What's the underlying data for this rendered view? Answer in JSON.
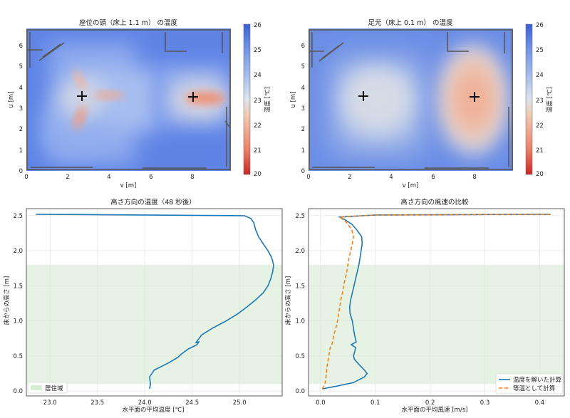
{
  "chart_data": [
    {
      "type": "heatmap",
      "title": "座位の頭（床上 1.1 m） の温度",
      "xlabel": "v [m]",
      "ylabel": "u [m]",
      "xlim": [
        0,
        9.8
      ],
      "ylim": [
        0,
        6.8
      ],
      "xticks": [
        "0",
        "2",
        "4",
        "6",
        "8"
      ],
      "yticks": [
        "0",
        "1",
        "2",
        "3",
        "4",
        "5",
        "6"
      ],
      "colorbar": {
        "label": "温度 [℃]",
        "range": [
          20,
          26
        ],
        "ticks": [
          "20",
          "21",
          "22",
          "23",
          "24",
          "25",
          "26"
        ]
      },
      "markers": [
        {
          "v": 2.7,
          "u": 3.55
        },
        {
          "v": 8.0,
          "u": 3.55
        }
      ],
      "hotspots": [
        {
          "v": 2.7,
          "u": 3.55,
          "temp": 22.3
        },
        {
          "v": 4.0,
          "u": 3.6,
          "temp": 22.8
        },
        {
          "v": 2.55,
          "u": 2.4,
          "temp": 22.5
        },
        {
          "v": 2.5,
          "u": 4.6,
          "temp": 23.2
        },
        {
          "v": 8.6,
          "u": 3.5,
          "temp": 22.0
        }
      ],
      "background_temp": 24.4
    },
    {
      "type": "heatmap",
      "title": "足元（床上 0.1 m） の温度",
      "xlabel": "v [m]",
      "ylabel": "u [m]",
      "xlim": [
        0,
        9.8
      ],
      "ylim": [
        0,
        6.8
      ],
      "xticks": [
        "0",
        "2",
        "4",
        "6",
        "8"
      ],
      "yticks": [
        "0",
        "1",
        "2",
        "3",
        "4",
        "5",
        "6"
      ],
      "colorbar": {
        "label": "温度 [℃]",
        "range": [
          20,
          26
        ],
        "ticks": [
          "20",
          "21",
          "22",
          "23",
          "24",
          "25",
          "26"
        ]
      },
      "markers": [
        {
          "v": 2.7,
          "u": 3.55
        },
        {
          "v": 8.0,
          "u": 3.55
        }
      ],
      "hotspots": [
        {
          "v": 8.0,
          "u": 3.55,
          "temp": 22.5
        },
        {
          "v": 3.5,
          "u": 3.6,
          "temp": 23.6
        }
      ],
      "background_temp": 24.4
    },
    {
      "type": "line",
      "title": "高さ方向の温度（48 秒後）",
      "xlabel": "水平面の平均温度 [℃]",
      "ylabel": "床からの高さ [m]",
      "xlim": [
        22.75,
        25.45
      ],
      "ylim": [
        -0.07,
        2.6
      ],
      "xticks": [
        23.0,
        23.5,
        24.0,
        24.5,
        25.0
      ],
      "yticks": [
        0.0,
        0.5,
        1.0,
        1.5,
        2.0,
        2.5
      ],
      "shaded_band": {
        "label": "居住域",
        "y_range": [
          0.1,
          1.8
        ]
      },
      "legend": "lower-left",
      "series": [
        {
          "color": "#1f77b4",
          "points": [
            [
              24.05,
              0.03
            ],
            [
              24.06,
              0.1
            ],
            [
              24.05,
              0.2
            ],
            [
              24.1,
              0.3
            ],
            [
              24.25,
              0.4
            ],
            [
              24.35,
              0.48
            ],
            [
              24.38,
              0.52
            ],
            [
              24.42,
              0.56
            ],
            [
              24.46,
              0.6
            ],
            [
              24.52,
              0.64
            ],
            [
              24.55,
              0.66
            ],
            [
              24.57,
              0.7
            ],
            [
              24.54,
              0.69
            ],
            [
              24.6,
              0.8
            ],
            [
              24.72,
              0.9
            ],
            [
              24.86,
              1.0
            ],
            [
              24.98,
              1.1
            ],
            [
              25.08,
              1.2
            ],
            [
              25.17,
              1.3
            ],
            [
              25.25,
              1.4
            ],
            [
              25.3,
              1.5
            ],
            [
              25.33,
              1.6
            ],
            [
              25.35,
              1.7
            ],
            [
              25.36,
              1.8
            ],
            [
              25.34,
              1.9
            ],
            [
              25.3,
              2.0
            ],
            [
              25.25,
              2.1
            ],
            [
              25.2,
              2.2
            ],
            [
              25.17,
              2.3
            ],
            [
              25.15,
              2.4
            ],
            [
              25.12,
              2.46
            ],
            [
              25.05,
              2.5
            ],
            [
              24.0,
              2.51
            ],
            [
              22.85,
              2.52
            ]
          ]
        }
      ]
    },
    {
      "type": "line",
      "title": "高さ方向の風速の比較",
      "xlabel": "水平面の平均風速 [m/s]",
      "ylabel": "床からの高さ [m]",
      "xlim": [
        -0.022,
        0.445
      ],
      "ylim": [
        -0.07,
        2.6
      ],
      "xticks": [
        0.0,
        0.1,
        0.2,
        0.3,
        0.4
      ],
      "yticks": [
        0.0,
        0.5,
        1.0,
        1.5,
        2.0,
        2.5
      ],
      "shaded_band": {
        "y_range": [
          0.1,
          1.8
        ]
      },
      "legend": "lower-right",
      "series": [
        {
          "name": "温度を解いた計算",
          "color": "#1f77b4",
          "dash": "solid",
          "points": [
            [
              0.003,
              0.03
            ],
            [
              0.03,
              0.07
            ],
            [
              0.06,
              0.12
            ],
            [
              0.08,
              0.2
            ],
            [
              0.085,
              0.25
            ],
            [
              0.08,
              0.3
            ],
            [
              0.07,
              0.38
            ],
            [
              0.062,
              0.45
            ],
            [
              0.06,
              0.5
            ],
            [
              0.062,
              0.55
            ],
            [
              0.064,
              0.62
            ],
            [
              0.056,
              0.66
            ],
            [
              0.065,
              0.7
            ],
            [
              0.062,
              0.8
            ],
            [
              0.06,
              0.9
            ],
            [
              0.058,
              1.0
            ],
            [
              0.054,
              1.1
            ],
            [
              0.053,
              1.2
            ],
            [
              0.055,
              1.3
            ],
            [
              0.058,
              1.4
            ],
            [
              0.061,
              1.5
            ],
            [
              0.064,
              1.6
            ],
            [
              0.067,
              1.7
            ],
            [
              0.07,
              1.8
            ],
            [
              0.072,
              1.9
            ],
            [
              0.074,
              2.0
            ],
            [
              0.076,
              2.1
            ],
            [
              0.075,
              2.2
            ],
            [
              0.066,
              2.3
            ],
            [
              0.057,
              2.38
            ],
            [
              0.045,
              2.44
            ],
            [
              0.035,
              2.48
            ],
            [
              0.1,
              2.51
            ],
            [
              0.42,
              2.52
            ]
          ]
        },
        {
          "name": "等温として計算",
          "color": "#ff7f0e",
          "dash": "dashed",
          "points": [
            [
              0.003,
              0.03
            ],
            [
              0.008,
              0.1
            ],
            [
              0.01,
              0.2
            ],
            [
              0.012,
              0.35
            ],
            [
              0.015,
              0.5
            ],
            [
              0.018,
              0.63
            ],
            [
              0.02,
              0.65
            ],
            [
              0.022,
              0.7
            ],
            [
              0.024,
              0.8
            ],
            [
              0.028,
              0.9
            ],
            [
              0.031,
              1.0
            ],
            [
              0.033,
              1.1
            ],
            [
              0.035,
              1.2
            ],
            [
              0.037,
              1.3
            ],
            [
              0.04,
              1.4
            ],
            [
              0.042,
              1.5
            ],
            [
              0.045,
              1.6
            ],
            [
              0.048,
              1.7
            ],
            [
              0.05,
              1.8
            ],
            [
              0.052,
              1.9
            ],
            [
              0.055,
              2.0
            ],
            [
              0.058,
              2.1
            ],
            [
              0.06,
              2.2
            ],
            [
              0.057,
              2.3
            ],
            [
              0.05,
              2.38
            ],
            [
              0.042,
              2.44
            ],
            [
              0.035,
              2.48
            ],
            [
              0.1,
              2.51
            ],
            [
              0.42,
              2.52
            ]
          ]
        }
      ]
    }
  ]
}
